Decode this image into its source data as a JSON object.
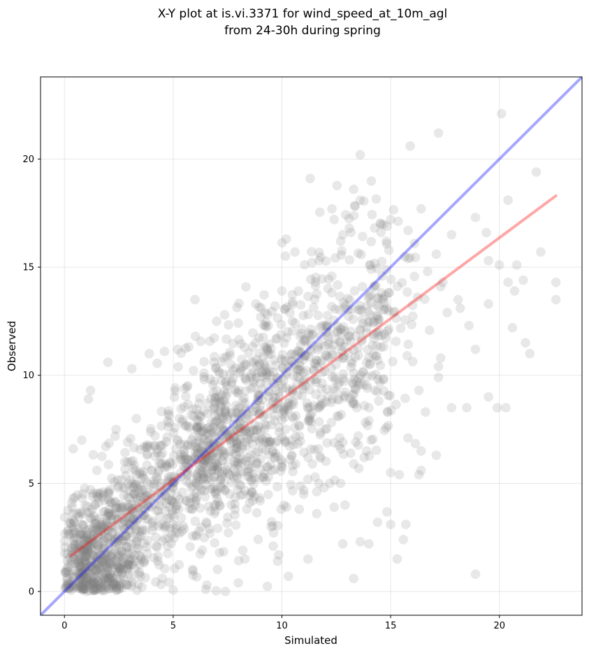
{
  "chart_data": {
    "type": "scatter",
    "title": "X-Y plot at is.vi.3371 for wind_speed_at_10m_agl\nfrom 24-30h during spring",
    "title_lines": [
      "X-Y plot at is.vi.3371 for wind_speed_at_10m_agl",
      "from 24-30h during spring"
    ],
    "xlabel": "Simulated",
    "ylabel": "Observed",
    "xlim": [
      -1.1,
      23.8
    ],
    "ylim": [
      -1.1,
      23.8
    ],
    "xticks": [
      0,
      5,
      10,
      15,
      20
    ],
    "yticks": [
      0,
      5,
      10,
      15,
      20
    ],
    "xtick_labels": [
      "0",
      "5",
      "10",
      "15",
      "20"
    ],
    "ytick_labels": [
      "0",
      "5",
      "10",
      "15",
      "20"
    ],
    "grid": true,
    "marker_color": "#808080",
    "marker_alpha": 0.18,
    "identity_line": {
      "color": "#0000ff",
      "alpha": 0.35,
      "x": [
        -1.1,
        23.8
      ],
      "y": [
        -1.1,
        23.8
      ]
    },
    "regression_line": {
      "color": "#ff0000",
      "alpha": 0.35,
      "x": [
        0.3,
        22.6
      ],
      "y": [
        1.65,
        18.3
      ]
    },
    "points_sampled": [
      [
        20.1,
        22.1
      ],
      [
        17.2,
        21.2
      ],
      [
        13.6,
        20.2
      ],
      [
        15.9,
        20.6
      ],
      [
        21.7,
        19.4
      ],
      [
        11.3,
        19.1
      ],
      [
        13.3,
        18.6
      ],
      [
        13.6,
        18.1
      ],
      [
        20.4,
        18.1
      ],
      [
        16.4,
        17.7
      ],
      [
        12.3,
        17.7
      ],
      [
        15.0,
        17.2
      ],
      [
        12.4,
        17.2
      ],
      [
        18.9,
        17.3
      ],
      [
        13.1,
        16.8
      ],
      [
        15.8,
        16.7
      ],
      [
        12.8,
        16.5
      ],
      [
        17.8,
        16.5
      ],
      [
        19.4,
        16.6
      ],
      [
        14.8,
        16.2
      ],
      [
        16.1,
        16.1
      ],
      [
        10.2,
        16.3
      ],
      [
        12.7,
        16.2
      ],
      [
        21.9,
        15.7
      ],
      [
        15.8,
        15.4
      ],
      [
        17.1,
        15.6
      ],
      [
        10.6,
        15.7
      ],
      [
        11.7,
        15.3
      ],
      [
        19.5,
        15.3
      ],
      [
        20.0,
        15.1
      ],
      [
        20.8,
        15.1
      ],
      [
        16.7,
        14.8
      ],
      [
        21.1,
        14.4
      ],
      [
        22.6,
        14.3
      ],
      [
        20.4,
        14.3
      ],
      [
        17.4,
        14.3
      ],
      [
        20.7,
        13.9
      ],
      [
        17.3,
        14.1
      ],
      [
        18.1,
        13.5
      ],
      [
        19.5,
        13.3
      ],
      [
        18.2,
        13.1
      ],
      [
        22.6,
        13.5
      ],
      [
        17.6,
        12.9
      ],
      [
        10.0,
        13.9
      ],
      [
        8.8,
        13.3
      ],
      [
        6.0,
        13.5
      ],
      [
        7.0,
        12.5
      ],
      [
        18.6,
        12.3
      ],
      [
        20.6,
        12.2
      ],
      [
        17.3,
        10.8
      ],
      [
        17.2,
        10.4
      ],
      [
        21.2,
        11.5
      ],
      [
        21.4,
        11.0
      ],
      [
        18.9,
        11.2
      ],
      [
        17.2,
        9.9
      ],
      [
        19.5,
        9.0
      ],
      [
        19.9,
        8.5
      ],
      [
        20.3,
        8.5
      ],
      [
        17.8,
        8.5
      ],
      [
        18.5,
        8.5
      ],
      [
        16.6,
        8.3
      ],
      [
        16.3,
        9.3
      ],
      [
        15.8,
        7.1
      ],
      [
        17.1,
        6.3
      ],
      [
        16.4,
        6.5
      ],
      [
        16.4,
        5.6
      ],
      [
        16.3,
        5.4
      ],
      [
        15.4,
        5.4
      ],
      [
        15.0,
        5.5
      ],
      [
        15.0,
        3.1
      ],
      [
        15.3,
        1.5
      ],
      [
        15.7,
        3.1
      ],
      [
        14.0,
        2.2
      ],
      [
        13.6,
        2.3
      ],
      [
        12.8,
        2.2
      ],
      [
        13.3,
        0.6
      ],
      [
        11.2,
        1.5
      ],
      [
        10.3,
        0.7
      ],
      [
        9.8,
        1.4
      ],
      [
        18.9,
        0.8
      ],
      [
        14.4,
        3.2
      ],
      [
        12.9,
        4.0
      ],
      [
        12.7,
        5.0
      ],
      [
        12.2,
        5.0
      ],
      [
        13.3,
        5.9
      ],
      [
        11.4,
        5.9
      ],
      [
        12.8,
        6.9
      ],
      [
        14.1,
        7.0
      ],
      [
        13.9,
        6.5
      ],
      [
        14.0,
        8.5
      ],
      [
        14.0,
        7.9
      ],
      [
        2.0,
        10.6
      ],
      [
        1.2,
        9.3
      ],
      [
        1.1,
        8.9
      ],
      [
        3.1,
        10.3
      ],
      [
        3.9,
        11.0
      ],
      [
        4.6,
        11.1
      ],
      [
        5.2,
        11.2
      ],
      [
        0.4,
        6.6
      ],
      [
        0.8,
        7.0
      ],
      [
        7.4,
        0.0
      ],
      [
        6.5,
        0.1
      ],
      [
        8.0,
        0.4
      ],
      [
        8.2,
        1.9
      ],
      [
        8.3,
        1.5
      ],
      [
        9.6,
        2.1
      ],
      [
        9.5,
        3.0
      ],
      [
        9.0,
        4.2
      ],
      [
        10.8,
        3.8
      ],
      [
        11.6,
        3.6
      ],
      [
        12.4,
        3.9
      ],
      [
        11.0,
        4.5
      ],
      [
        11.7,
        5.0
      ]
    ]
  }
}
